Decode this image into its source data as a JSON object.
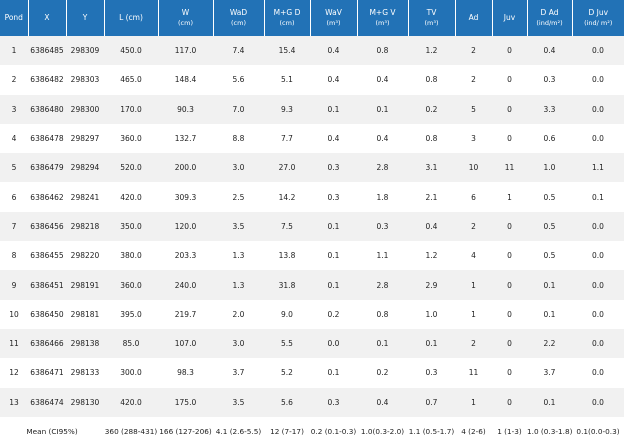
{
  "table": {
    "headers": [
      [
        "Pond"
      ],
      [
        "X"
      ],
      [
        "Y"
      ],
      [
        "L (cm)"
      ],
      [
        "W",
        "(cm)"
      ],
      [
        "WaD",
        "(cm)"
      ],
      [
        "M+G D",
        "(cm)"
      ],
      [
        "WaV",
        "(m³)"
      ],
      [
        "M+G V",
        "(m³)"
      ],
      [
        "TV",
        "(m³)"
      ],
      [
        "Ad"
      ],
      [
        "Juv"
      ],
      [
        "D Ad",
        "(ind/m²)"
      ],
      [
        "D Juv",
        "(ind/ m²)"
      ]
    ],
    "rows": [
      [
        "1",
        "6386485",
        "298309",
        "450.0",
        "117.0",
        "7.4",
        "15.4",
        "0.4",
        "0.8",
        "1.2",
        "2",
        "0",
        "0.4",
        "0.0"
      ],
      [
        "2",
        "6386482",
        "298303",
        "465.0",
        "148.4",
        "5.6",
        "5.1",
        "0.4",
        "0.4",
        "0.8",
        "2",
        "0",
        "0.3",
        "0.0"
      ],
      [
        "3",
        "6386480",
        "298300",
        "170.0",
        "90.3",
        "7.0",
        "9.3",
        "0.1",
        "0.1",
        "0.2",
        "5",
        "0",
        "3.3",
        "0.0"
      ],
      [
        "4",
        "6386478",
        "298297",
        "360.0",
        "132.7",
        "8.8",
        "7.7",
        "0.4",
        "0.4",
        "0.8",
        "3",
        "0",
        "0.6",
        "0.0"
      ],
      [
        "5",
        "6386479",
        "298294",
        "520.0",
        "200.0",
        "3.0",
        "27.0",
        "0.3",
        "2.8",
        "3.1",
        "10",
        "11",
        "1.0",
        "1.1"
      ],
      [
        "6",
        "6386462",
        "298241",
        "420.0",
        "309.3",
        "2.5",
        "14.2",
        "0.3",
        "1.8",
        "2.1",
        "6",
        "1",
        "0.5",
        "0.1"
      ],
      [
        "7",
        "6386456",
        "298218",
        "350.0",
        "120.0",
        "3.5",
        "7.5",
        "0.1",
        "0.3",
        "0.4",
        "2",
        "0",
        "0.5",
        "0.0"
      ],
      [
        "8",
        "6386455",
        "298220",
        "380.0",
        "203.3",
        "1.3",
        "13.8",
        "0.1",
        "1.1",
        "1.2",
        "4",
        "0",
        "0.5",
        "0.0"
      ],
      [
        "9",
        "6386451",
        "298191",
        "360.0",
        "240.0",
        "1.3",
        "31.8",
        "0.1",
        "2.8",
        "2.9",
        "1",
        "0",
        "0.1",
        "0.0"
      ],
      [
        "10",
        "6386450",
        "298181",
        "395.0",
        "219.7",
        "2.0",
        "9.0",
        "0.2",
        "0.8",
        "1.0",
        "1",
        "0",
        "0.1",
        "0.0"
      ],
      [
        "11",
        "6386466",
        "298138",
        "85.0",
        "107.0",
        "3.0",
        "5.5",
        "0.0",
        "0.1",
        "0.1",
        "2",
        "0",
        "2.2",
        "0.0"
      ],
      [
        "12",
        "6386471",
        "298133",
        "300.0",
        "98.3",
        "3.7",
        "5.2",
        "0.1",
        "0.2",
        "0.3",
        "11",
        "0",
        "3.7",
        "0.0"
      ],
      [
        "13",
        "6386474",
        "298130",
        "420.0",
        "175.0",
        "3.5",
        "5.6",
        "0.3",
        "0.4",
        "0.7",
        "1",
        "0",
        "0.1",
        "0.0"
      ]
    ],
    "mean_row": {
      "label": "Mean (CI95%)",
      "values": [
        "360 (288-431)",
        "166 (127-206)",
        "4.1 (2.6-5.5)",
        "12 (7-17)",
        "0.2 (0.1-0.3)",
        "1.0(0.3-2.0)",
        "1.1 (0.5-1.7)",
        "4 (2-6)",
        "1 (1-3)",
        "1.0 (0.3-1.8)",
        "0.1(0.0-0.3)"
      ]
    }
  }
}
